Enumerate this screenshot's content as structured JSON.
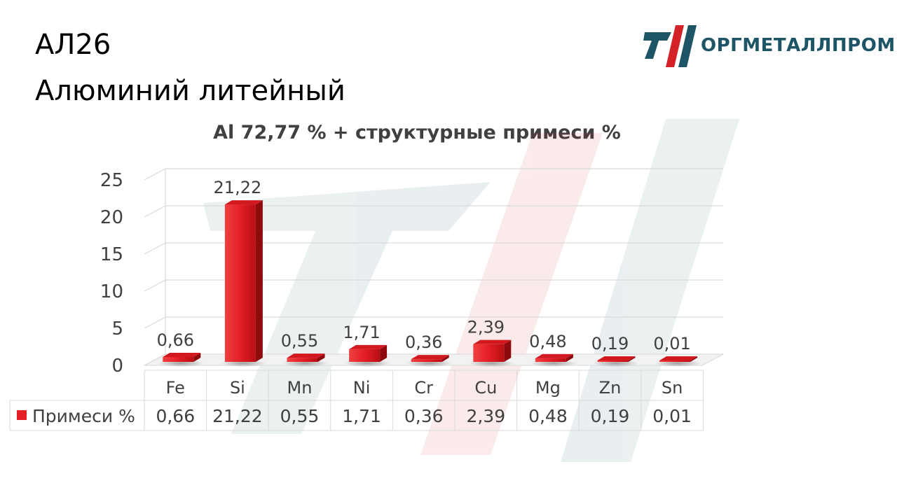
{
  "header": {
    "code": "АЛ26",
    "name": "Алюминий литейный"
  },
  "logo": {
    "text": "ОРГМЕТАЛЛПРОМ",
    "color_dark": "#1e5566",
    "color_red": "#d42027"
  },
  "chart_data": {
    "type": "bar",
    "title": "Al 72,77 % + структурные примеси %",
    "categories": [
      "Fe",
      "Si",
      "Mn",
      "Ni",
      "Cr",
      "Cu",
      "Mg",
      "Zn",
      "Sn"
    ],
    "series": [
      {
        "name": "Примеси %",
        "values": [
          0.66,
          21.22,
          0.55,
          1.71,
          0.36,
          2.39,
          0.48,
          0.19,
          0.01
        ],
        "labels": [
          "0,66",
          "21,22",
          "0,55",
          "1,71",
          "0,36",
          "2,39",
          "0,48",
          "0,19",
          "0,01"
        ],
        "color": "#e31e24"
      }
    ],
    "yticks": [
      "0",
      "5",
      "10",
      "15",
      "20",
      "25"
    ],
    "ylim": [
      0,
      25
    ],
    "grid": true,
    "data_table": true,
    "bar_style": "3d"
  }
}
